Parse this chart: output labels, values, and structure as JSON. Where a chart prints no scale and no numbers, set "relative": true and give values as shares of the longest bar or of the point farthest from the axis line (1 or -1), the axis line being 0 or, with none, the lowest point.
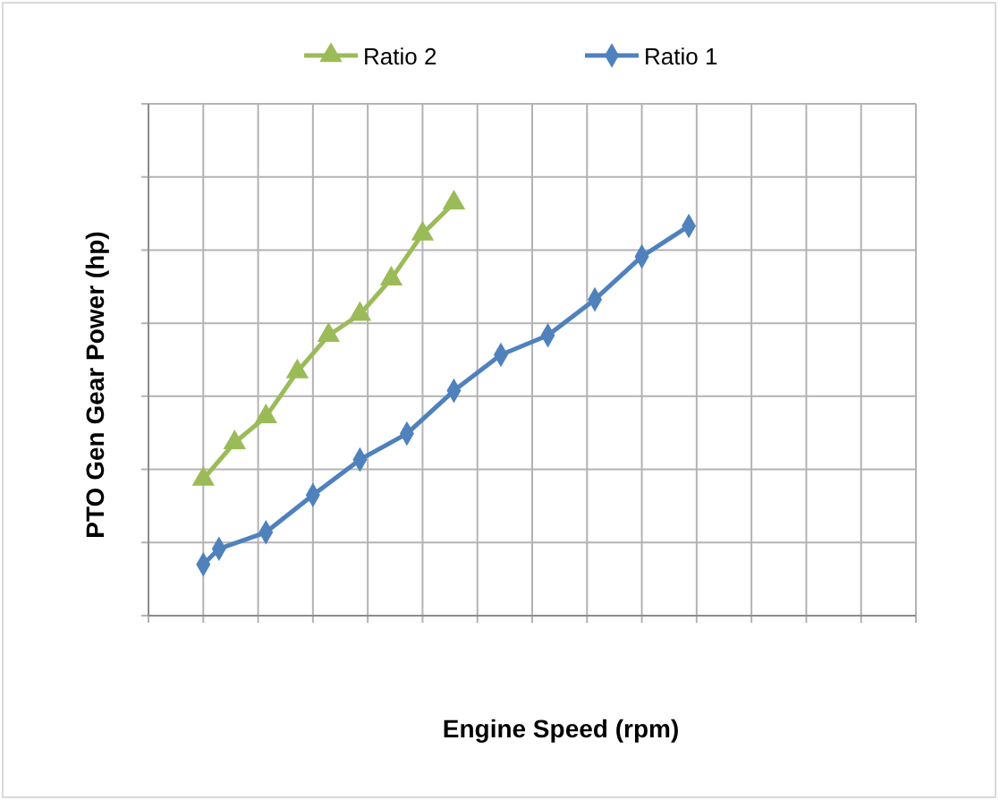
{
  "chart_data": {
    "type": "line",
    "xlabel": "Engine Speed (rpm)",
    "ylabel": "PTO Gen Gear Power (hp)",
    "relative": true,
    "grid": true,
    "legend": "top",
    "line_style": "solid",
    "categories": [
      null,
      null,
      null,
      null,
      null,
      null,
      null,
      null,
      null,
      null,
      null,
      null,
      null,
      null,
      null,
      null,
      null,
      null,
      null,
      null,
      null,
      null,
      null,
      null,
      null,
      null,
      null,
      null,
      null,
      null,
      null,
      null,
      null,
      null,
      null,
      null,
      null,
      null,
      null,
      null,
      null,
      null,
      null,
      null,
      null,
      null
    ],
    "series": [
      {
        "name": "Ratio 2",
        "color": "#9bbb59",
        "marker": "triangle",
        "values": [
          0.331,
          null,
          0.419,
          null,
          0.482,
          null,
          0.591,
          null,
          0.679,
          null,
          0.73,
          null,
          0.816,
          null,
          0.925,
          null,
          1,
          null,
          null,
          null,
          null,
          null,
          null,
          null,
          null,
          null,
          null,
          null,
          null,
          null,
          null,
          null,
          null,
          null,
          null,
          null,
          null,
          null,
          null,
          null,
          null,
          null,
          null,
          null,
          null,
          null
        ]
      },
      {
        "name": "Ratio 1",
        "color": "#4f81bd",
        "marker": "diamond",
        "values": [
          0.124,
          0.162,
          null,
          null,
          0.202,
          null,
          null,
          0.292,
          null,
          null,
          0.378,
          null,
          null,
          0.441,
          null,
          null,
          0.545,
          null,
          null,
          0.632,
          null,
          null,
          0.679,
          null,
          null,
          0.766,
          null,
          null,
          0.87,
          null,
          null,
          0.944,
          null,
          null,
          null,
          null,
          null,
          null,
          null,
          null,
          null,
          null,
          null,
          null,
          null,
          null
        ]
      }
    ]
  }
}
